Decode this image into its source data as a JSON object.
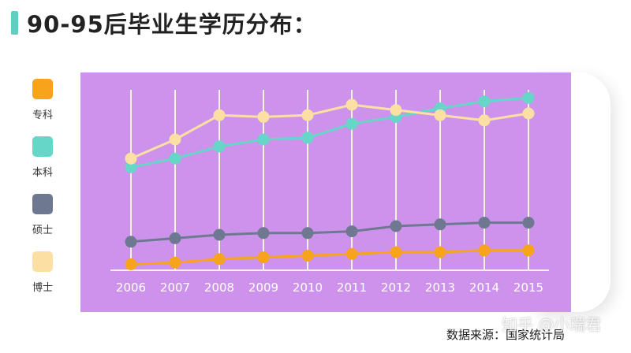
{
  "title": "90-95后毕业生学历分布：",
  "source": "数据来源：国家统计局",
  "watermark": "知乎 @小瑞君",
  "colors": {
    "title_accent": "#5fd0c0",
    "plot_background": "#cd93ec",
    "grid_line": "#f6f1e6"
  },
  "chart_data": {
    "type": "line",
    "title": "90-95后毕业生学历分布：",
    "xlabel": "",
    "ylabel": "",
    "categories": [
      "2006",
      "2007",
      "2008",
      "2009",
      "2010",
      "2011",
      "2012",
      "2013",
      "2014",
      "2015"
    ],
    "ylim": [
      0,
      100
    ],
    "grid": {
      "vertical": true,
      "horizontal": false
    },
    "legend_position": "left",
    "series": [
      {
        "name": "专科",
        "color": "#f7a31c",
        "values": [
          3,
          4,
          6,
          7,
          8,
          9,
          10,
          10,
          11,
          11
        ]
      },
      {
        "name": "本科",
        "color": "#66d6c8",
        "values": [
          59,
          64,
          71,
          75,
          76,
          84,
          88,
          93,
          97,
          99
        ]
      },
      {
        "name": "硕士",
        "color": "#6f7891",
        "values": [
          16,
          18,
          20,
          21,
          21,
          22,
          25,
          26,
          27,
          27
        ]
      },
      {
        "name": "博士",
        "color": "#fcdfa3",
        "values": [
          64,
          75,
          89,
          88,
          89,
          95,
          92,
          89,
          86,
          90
        ]
      }
    ]
  }
}
